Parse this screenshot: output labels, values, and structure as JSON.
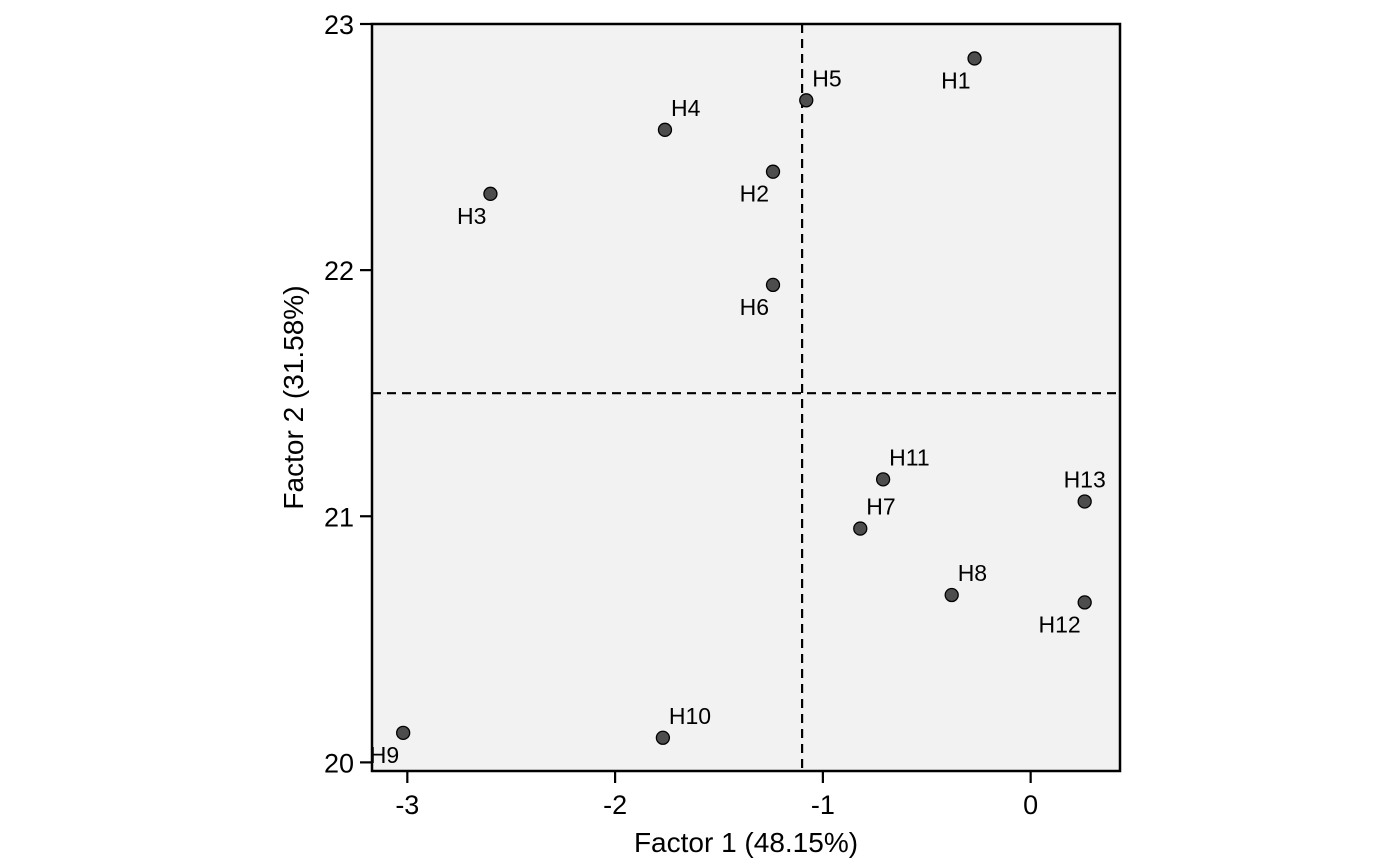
{
  "chart_data": {
    "type": "scatter",
    "title": "",
    "xlabel": "Factor 1 (48.15%)",
    "ylabel": "Factor 2 (31.58%)",
    "xlim": [
      -3.17,
      0.43
    ],
    "ylim": [
      19.965,
      23.0
    ],
    "xticks": [
      -3,
      -2,
      -1,
      0
    ],
    "xtick_labels": [
      "-3",
      "-2",
      "-1",
      "0"
    ],
    "yticks": [
      20,
      21,
      22,
      23
    ],
    "ytick_labels": [
      "20",
      "21",
      "22",
      "23"
    ],
    "reference_lines": {
      "x": -1.1,
      "y": 21.5,
      "style": "dashed"
    },
    "grid": false,
    "legend": "none",
    "panel_color": "#f2f2f2",
    "point_color": "#4d4d4d",
    "points": [
      {
        "label": "H1",
        "x": -0.27,
        "y": 22.86,
        "label_pos": "below-left"
      },
      {
        "label": "H2",
        "x": -1.24,
        "y": 22.4,
        "label_pos": "below-left"
      },
      {
        "label": "H3",
        "x": -2.6,
        "y": 22.31,
        "label_pos": "below-left"
      },
      {
        "label": "H4",
        "x": -1.76,
        "y": 22.57,
        "label_pos": "above-right"
      },
      {
        "label": "H5",
        "x": -1.08,
        "y": 22.69,
        "label_pos": "above-right"
      },
      {
        "label": "H6",
        "x": -1.24,
        "y": 21.94,
        "label_pos": "below-left"
      },
      {
        "label": "H7",
        "x": -0.82,
        "y": 20.95,
        "label_pos": "above-right"
      },
      {
        "label": "H8",
        "x": -0.38,
        "y": 20.68,
        "label_pos": "above-right"
      },
      {
        "label": "H9",
        "x": -3.02,
        "y": 20.12,
        "label_pos": "below-left"
      },
      {
        "label": "H10",
        "x": -1.77,
        "y": 20.1,
        "label_pos": "above-right"
      },
      {
        "label": "H11",
        "x": -0.71,
        "y": 21.15,
        "label_pos": "above-right"
      },
      {
        "label": "H12",
        "x": 0.26,
        "y": 20.65,
        "label_pos": "below-left"
      },
      {
        "label": "H13",
        "x": 0.26,
        "y": 21.06,
        "label_pos": "above"
      }
    ]
  }
}
